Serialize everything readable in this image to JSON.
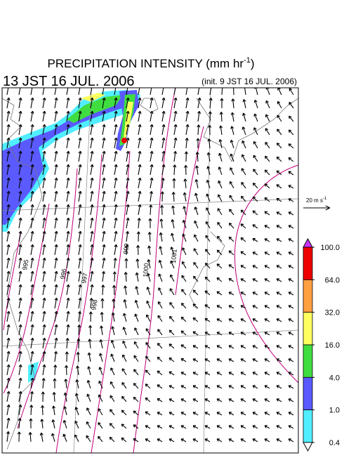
{
  "header": {
    "title": "PRECIPITATION INTENSITY (mm hr",
    "title_superscript": "-1",
    "title_close": ")",
    "valid_time": "13 JST 16 JUL. 2006",
    "init_time": "(init. 9 JST 16 JUL. 2006)"
  },
  "wind_scale": {
    "label": "20 m s",
    "superscript": "-1"
  },
  "colorbar": {
    "ticks": [
      {
        "value": 100,
        "label": "100.0"
      },
      {
        "value": 64,
        "label": "64.0"
      },
      {
        "value": 32,
        "label": "32.0"
      },
      {
        "value": 16,
        "label": "16.0"
      },
      {
        "value": 4,
        "label": "4.0"
      },
      {
        "value": 1,
        "label": "1.0"
      },
      {
        "value": 0.4,
        "label": "0.4"
      }
    ],
    "colors": [
      "#ee0000",
      "#ffa040",
      "#ffff60",
      "#40dd40",
      "#5a5aff",
      "#50eeff"
    ],
    "over_color": "#cc33ff",
    "under_color": "#ffffff"
  },
  "isobar_labels": [
    "995",
    "996",
    "997",
    "998",
    "999",
    "1000",
    "1001"
  ]
}
